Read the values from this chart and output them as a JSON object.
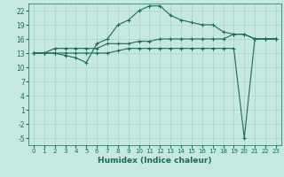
{
  "xlabel": "Humidex (Indice chaleur)",
  "bg_color": "#c5e8e0",
  "grid_color": "#a8cdc6",
  "line_color": "#1a6b5a",
  "xlim": [
    -0.5,
    23.5
  ],
  "ylim": [
    -6.5,
    23.5
  ],
  "yticks": [
    -5,
    -2,
    1,
    4,
    7,
    10,
    13,
    16,
    19,
    22
  ],
  "xticks": [
    0,
    1,
    2,
    3,
    4,
    5,
    6,
    7,
    8,
    9,
    10,
    11,
    12,
    13,
    14,
    15,
    16,
    17,
    18,
    19,
    20,
    21,
    22,
    23
  ],
  "line1_x": [
    0,
    1,
    2,
    3,
    4,
    5,
    6,
    7,
    8,
    9,
    10,
    11,
    12,
    13,
    14,
    15,
    16,
    17,
    18,
    19,
    20,
    21,
    22,
    23
  ],
  "line1_y": [
    13,
    13,
    13,
    12.5,
    12,
    11,
    15,
    16,
    19,
    20,
    22,
    23,
    23,
    21,
    20,
    19.5,
    19,
    19,
    17.5,
    17,
    17,
    16,
    16,
    16
  ],
  "line2_x": [
    0,
    1,
    2,
    3,
    4,
    5,
    6,
    7,
    8,
    9,
    10,
    11,
    12,
    13,
    14,
    15,
    16,
    17,
    18,
    19,
    20,
    21,
    22,
    23
  ],
  "line2_y": [
    13,
    13,
    14,
    14,
    14,
    14,
    14,
    15,
    15,
    15,
    15.5,
    15.5,
    16,
    16,
    16,
    16,
    16,
    16,
    16,
    17,
    17,
    16,
    16,
    16
  ],
  "line3_x": [
    0,
    1,
    2,
    3,
    4,
    5,
    6,
    7,
    8,
    9,
    10,
    11,
    12,
    13,
    14,
    15,
    16,
    17,
    18,
    19,
    20,
    21,
    22,
    23
  ],
  "line3_y": [
    13,
    13,
    13,
    13,
    13,
    13,
    13,
    13,
    13.5,
    14,
    14,
    14,
    14,
    14,
    14,
    14,
    14,
    14,
    14,
    14,
    -5,
    16,
    16,
    16
  ]
}
